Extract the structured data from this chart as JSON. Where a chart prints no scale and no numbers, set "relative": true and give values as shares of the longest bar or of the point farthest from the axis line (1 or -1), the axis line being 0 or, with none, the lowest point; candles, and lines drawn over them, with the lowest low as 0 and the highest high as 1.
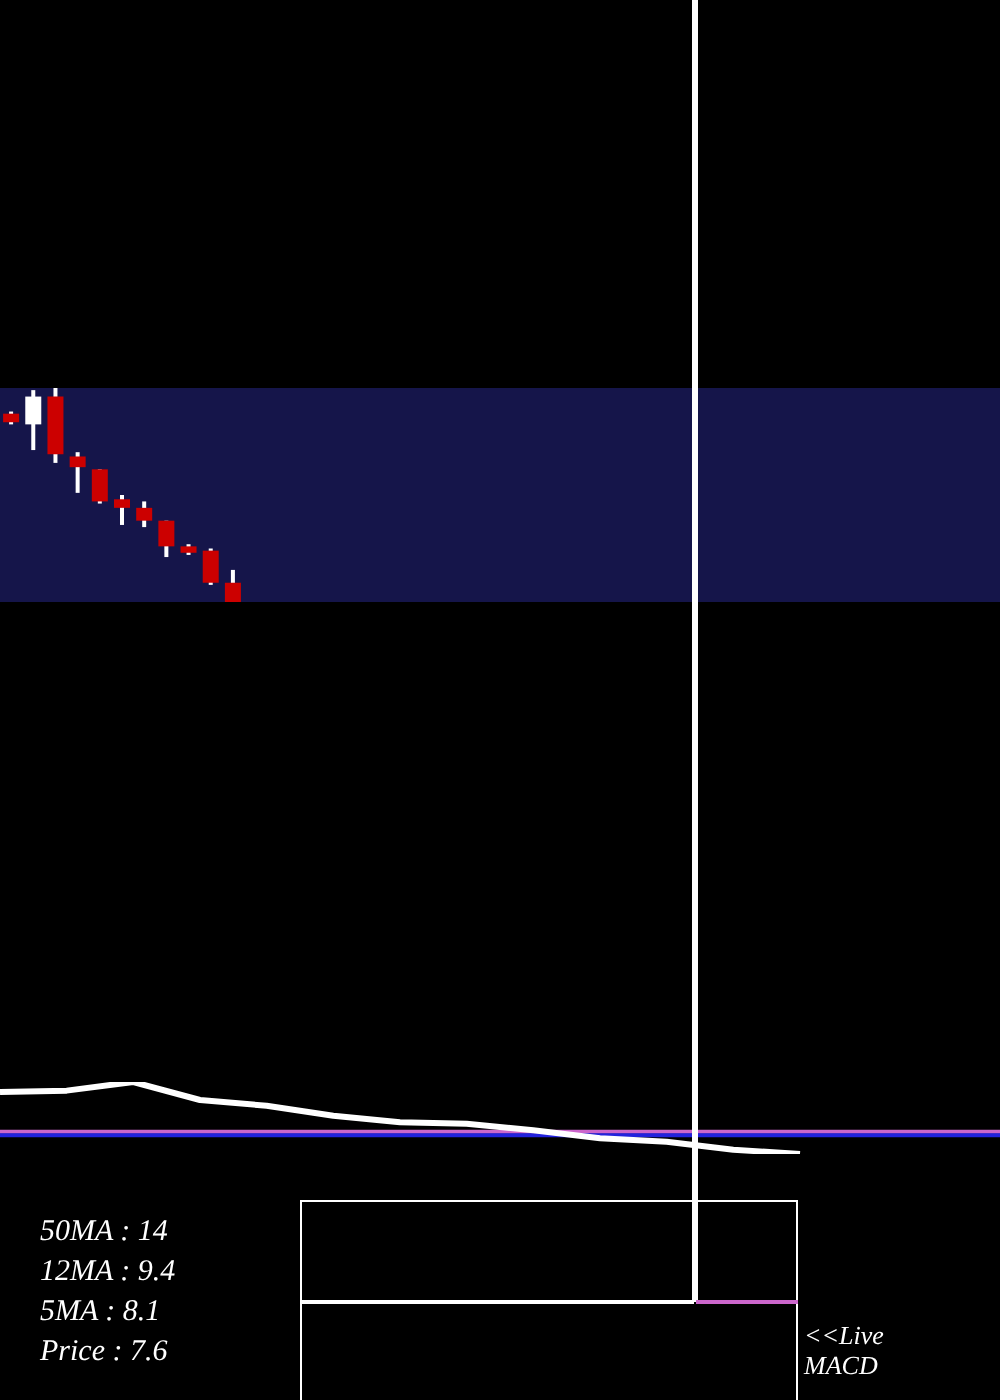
{
  "chart_data": [
    {
      "type": "candlestick",
      "relative": true,
      "legend": false,
      "categories": [
        null,
        null,
        null,
        null,
        null,
        null,
        null,
        null,
        null,
        null,
        null
      ],
      "ohlc": [
        [
          0.88,
          0.89,
          0.83,
          0.84
        ],
        [
          0.83,
          0.99,
          0.71,
          0.96
        ],
        [
          0.96,
          1,
          0.65,
          0.69
        ],
        [
          0.68,
          0.7,
          0.51,
          0.63
        ],
        [
          0.62,
          0.62,
          0.46,
          0.47
        ],
        [
          0.48,
          0.5,
          0.36,
          0.44
        ],
        [
          0.44,
          0.47,
          0.35,
          0.38
        ],
        [
          0.38,
          0.38,
          0.21,
          0.26
        ],
        [
          0.26,
          0.27,
          0.22,
          0.23
        ],
        [
          0.24,
          0.25,
          0.08,
          0.09
        ],
        [
          0.09,
          0.15,
          0,
          0
        ]
      ],
      "colors": [
        "#cc0000",
        "#ffffff",
        "#cc0000",
        "#cc0000",
        "#cc0000",
        "#cc0000",
        "#cc0000",
        "#cc0000",
        "#cc0000",
        "#cc0000",
        "#cc0000"
      ],
      "annotations": [
        "50MA : 14",
        "12MA : 9.4",
        "5MA : 8.1",
        "Price   : 7.6",
        "<<Live MACD"
      ]
    },
    {
      "type": "line",
      "relative": true,
      "legend": false,
      "categories": [
        null,
        null,
        null,
        null,
        null,
        null,
        null,
        null,
        null,
        null,
        null,
        null,
        null,
        null,
        null,
        null
      ],
      "series": [
        {
          "color": "#ffffff",
          "values": [
            0.86,
            0.88,
            1,
            0.75,
            0.67,
            0.53,
            0.44,
            0.42,
            0.33,
            0.22,
            0.17,
            0.06,
            0,
            null,
            null,
            null
          ]
        }
      ],
      "ref_lines": [
        {
          "axis": "y",
          "value": 0.31,
          "color": "#cc66cc"
        },
        {
          "axis": "y",
          "value": 0.26,
          "color": "#2222dd"
        }
      ]
    }
  ]
}
